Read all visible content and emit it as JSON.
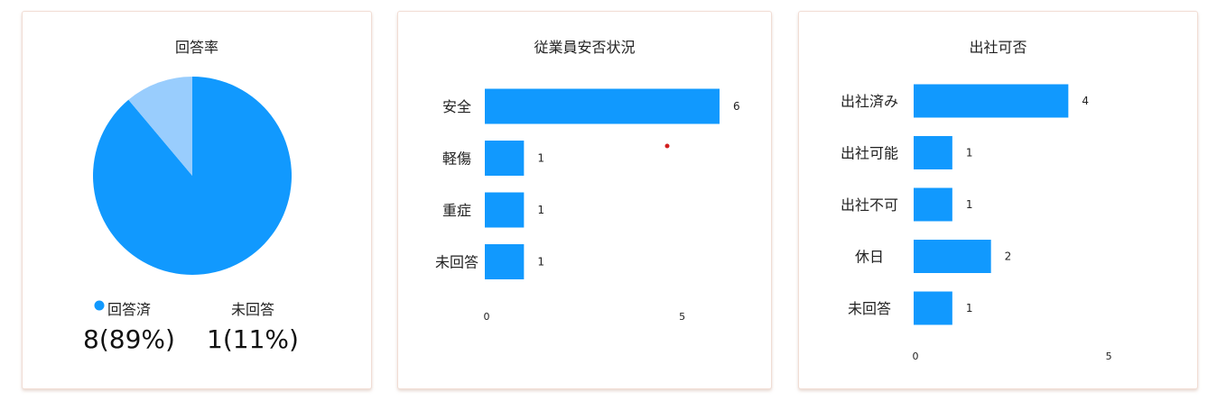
{
  "colors": {
    "primary": "#1199fe",
    "secondary": "#99cdfd",
    "red_dot": "#d21f1f"
  },
  "chart_data": [
    {
      "type": "pie",
      "title": "回答率",
      "slices": [
        {
          "name": "回答済",
          "value": 8,
          "display": "8(89%)"
        },
        {
          "name": "未回答",
          "value": 1,
          "display": "1(11%)"
        }
      ]
    },
    {
      "type": "bar",
      "orientation": "horizontal",
      "title": "従業員安否状況",
      "categories": [
        "安全",
        "軽傷",
        "重症",
        "未回答"
      ],
      "values": [
        6,
        1,
        1,
        1
      ],
      "xlim": [
        0,
        6
      ],
      "ticks": [
        "0",
        "5"
      ]
    },
    {
      "type": "bar",
      "orientation": "horizontal",
      "title": "出社可否",
      "categories": [
        "出社済み",
        "出社可能",
        "出社不可",
        "休日",
        "未回答"
      ],
      "values": [
        4,
        1,
        1,
        2,
        1
      ],
      "xlim": [
        0,
        6
      ],
      "ticks": [
        "0",
        "5"
      ]
    }
  ]
}
